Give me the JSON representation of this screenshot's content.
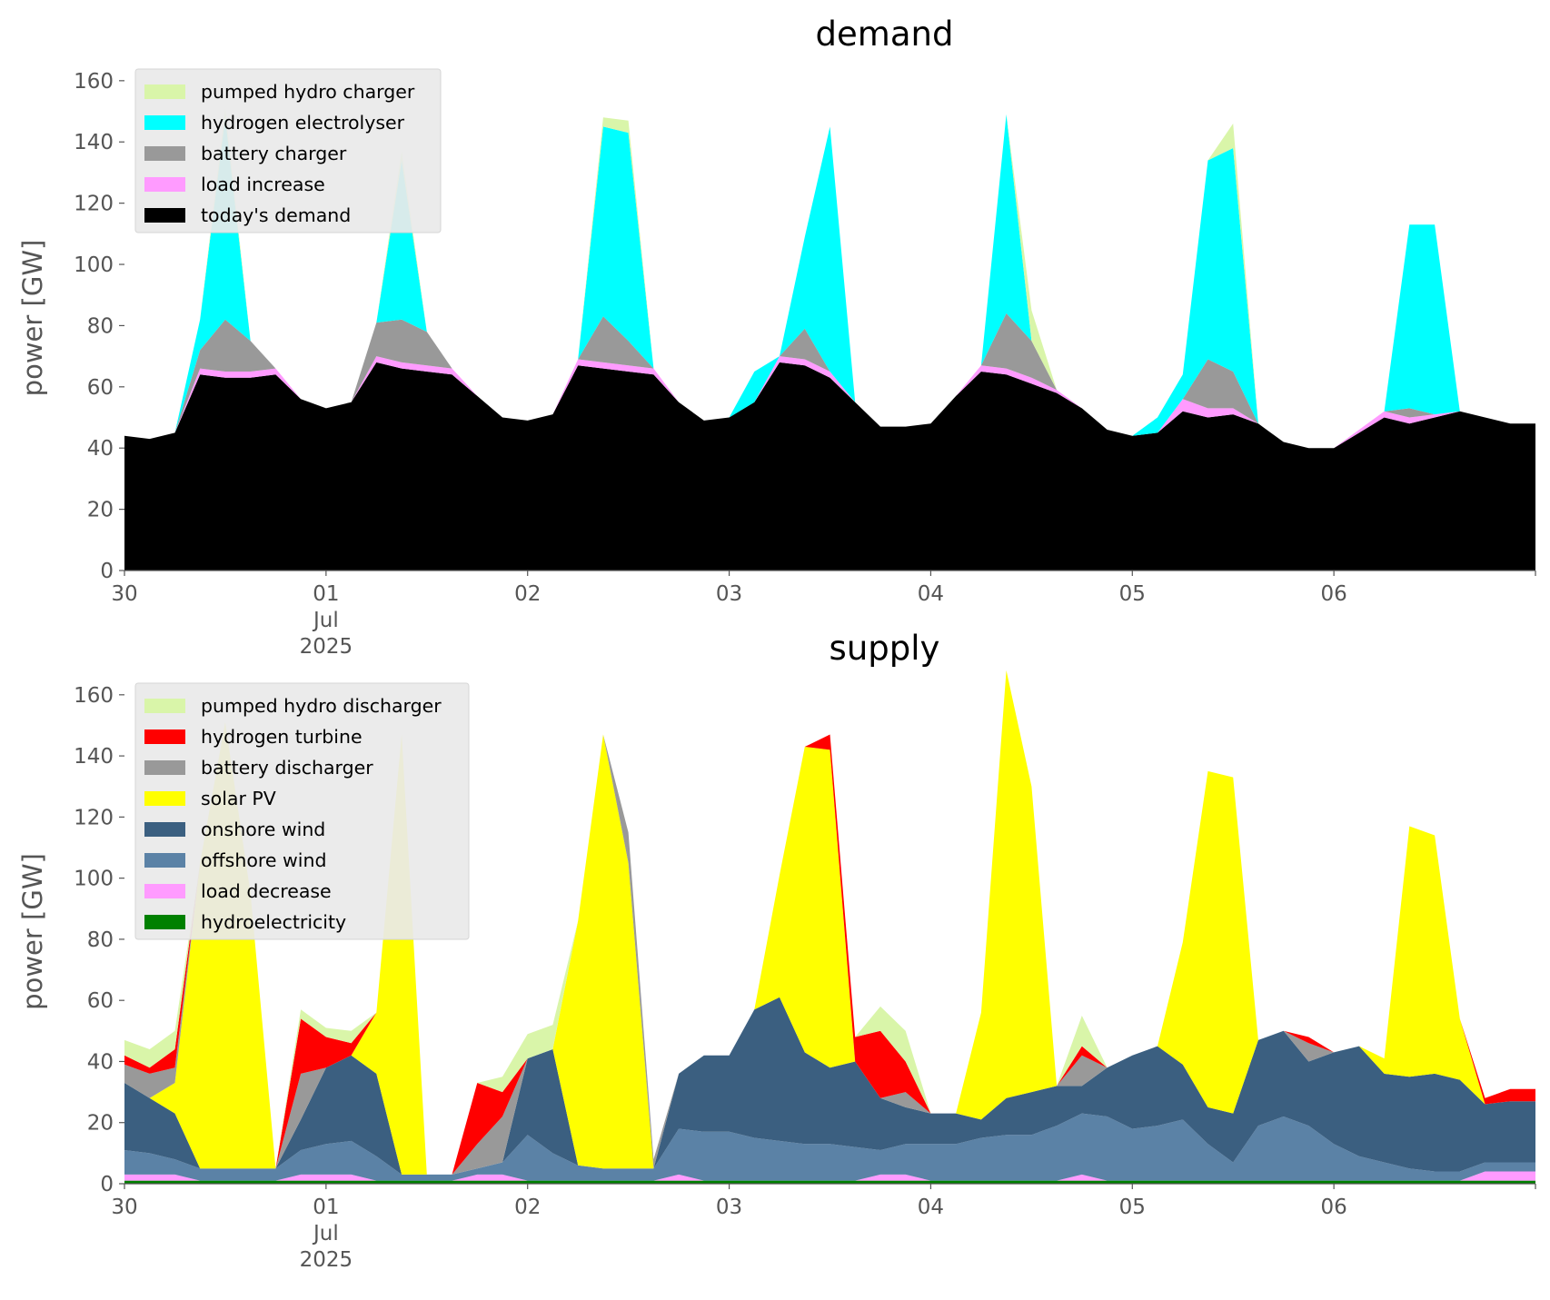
{
  "chart_data": [
    {
      "type": "area",
      "stacked": true,
      "title": "demand",
      "xlabel": "",
      "ylabel": "power [GW]",
      "ylim": [
        0,
        165
      ],
      "xlim": [
        "2025-06-30T00:00",
        "2025-07-07T00:00"
      ],
      "x_step_hours": 3,
      "x_ticks": [
        {
          "at": "2025-06-30T00:00",
          "lines": [
            "30",
            "",
            ""
          ]
        },
        {
          "at": "2025-07-01T00:00",
          "lines": [
            "01",
            "Jul",
            "2025"
          ]
        },
        {
          "at": "2025-07-02T00:00",
          "lines": [
            "02",
            "",
            ""
          ]
        },
        {
          "at": "2025-07-03T00:00",
          "lines": [
            "03",
            "",
            ""
          ]
        },
        {
          "at": "2025-07-04T00:00",
          "lines": [
            "04",
            "",
            ""
          ]
        },
        {
          "at": "2025-07-05T00:00",
          "lines": [
            "05",
            "",
            ""
          ]
        },
        {
          "at": "2025-07-06T00:00",
          "lines": [
            "06",
            "",
            ""
          ]
        }
      ],
      "y_ticks": [
        0,
        20,
        40,
        60,
        80,
        100,
        120,
        140,
        160
      ],
      "grid": false,
      "legend_position": "top-left",
      "series": [
        {
          "name": "today's demand",
          "color": "#000000",
          "values": [
            44,
            43,
            45,
            64,
            63,
            63,
            64,
            56,
            53,
            55,
            68,
            66,
            65,
            64,
            57,
            50,
            49,
            51,
            67,
            66,
            65,
            64,
            55,
            49,
            50,
            55,
            68,
            67,
            63,
            55,
            47,
            47,
            48,
            57,
            65,
            64,
            61,
            58,
            53,
            46,
            44,
            45,
            52,
            50,
            51,
            48,
            42,
            40,
            40,
            45,
            50,
            48,
            50,
            52,
            50,
            48
          ]
        },
        {
          "name": "load increase",
          "color": "#ff9bff",
          "values": [
            0,
            0,
            0,
            2,
            2,
            2,
            2,
            0,
            0,
            0,
            2,
            2,
            2,
            2,
            0,
            0,
            0,
            0,
            2,
            2,
            2,
            2,
            0,
            0,
            0,
            0,
            2,
            2,
            2,
            0,
            0,
            0,
            0,
            0,
            2,
            2,
            2,
            1,
            0,
            0,
            0,
            0,
            4,
            3,
            2,
            0,
            0,
            0,
            0,
            1,
            2,
            2,
            1,
            0,
            0,
            0
          ]
        },
        {
          "name": "battery charger",
          "color": "#999999",
          "values": [
            0,
            0,
            0,
            6,
            17,
            10,
            0,
            0,
            0,
            0,
            11,
            14,
            11,
            0,
            0,
            0,
            0,
            0,
            0,
            15,
            8,
            0,
            0,
            0,
            0,
            0,
            0,
            10,
            0,
            0,
            0,
            0,
            0,
            0,
            0,
            18,
            12,
            0,
            0,
            0,
            0,
            0,
            0,
            16,
            12,
            0,
            0,
            0,
            0,
            0,
            0,
            3,
            0,
            0,
            0,
            0
          ]
        },
        {
          "name": "hydrogen electrolyser",
          "color": "#00ffff",
          "values": [
            0,
            0,
            0,
            10,
            66,
            0,
            0,
            0,
            0,
            0,
            0,
            52,
            0,
            0,
            0,
            0,
            0,
            0,
            0,
            62,
            68,
            0,
            0,
            0,
            0,
            10,
            0,
            30,
            80,
            0,
            0,
            0,
            0,
            0,
            0,
            65,
            0,
            0,
            0,
            0,
            0,
            5,
            8,
            65,
            73,
            0,
            0,
            0,
            0,
            0,
            0,
            60,
            62,
            0,
            0,
            0
          ]
        },
        {
          "name": "pumped hydro charger",
          "color": "#d9f5a9",
          "values": [
            0,
            0,
            0,
            0,
            3,
            0,
            0,
            0,
            0,
            0,
            0,
            3,
            0,
            0,
            0,
            0,
            0,
            0,
            0,
            3,
            4,
            0,
            0,
            0,
            0,
            0,
            0,
            0,
            0,
            0,
            0,
            0,
            0,
            0,
            0,
            0,
            10,
            0,
            0,
            0,
            0,
            0,
            0,
            0,
            8,
            0,
            0,
            0,
            0,
            0,
            0,
            0,
            0,
            0,
            0,
            0
          ]
        }
      ]
    },
    {
      "type": "area",
      "stacked": true,
      "title": "supply",
      "xlabel": "",
      "ylabel": "power [GW]",
      "ylim": [
        0,
        165
      ],
      "xlim": [
        "2025-06-30T00:00",
        "2025-07-07T00:00"
      ],
      "x_step_hours": 3,
      "x_ticks": [
        {
          "at": "2025-06-30T00:00",
          "lines": [
            "30",
            "",
            ""
          ]
        },
        {
          "at": "2025-07-01T00:00",
          "lines": [
            "01",
            "Jul",
            "2025"
          ]
        },
        {
          "at": "2025-07-02T00:00",
          "lines": [
            "02",
            "",
            ""
          ]
        },
        {
          "at": "2025-07-03T00:00",
          "lines": [
            "03",
            "",
            ""
          ]
        },
        {
          "at": "2025-07-04T00:00",
          "lines": [
            "04",
            "",
            ""
          ]
        },
        {
          "at": "2025-07-05T00:00",
          "lines": [
            "05",
            "",
            ""
          ]
        },
        {
          "at": "2025-07-06T00:00",
          "lines": [
            "06",
            "",
            ""
          ]
        }
      ],
      "y_ticks": [
        0,
        20,
        40,
        60,
        80,
        100,
        120,
        140,
        160
      ],
      "grid": false,
      "legend_position": "top-left",
      "series": [
        {
          "name": "hydroelectricity",
          "color": "#008000",
          "values": [
            1,
            1,
            1,
            1,
            1,
            1,
            1,
            1,
            1,
            1,
            1,
            1,
            1,
            1,
            1,
            1,
            1,
            1,
            1,
            1,
            1,
            1,
            1,
            1,
            1,
            1,
            1,
            1,
            1,
            1,
            1,
            1,
            1,
            1,
            1,
            1,
            1,
            1,
            1,
            1,
            1,
            1,
            1,
            1,
            1,
            1,
            1,
            1,
            1,
            1,
            1,
            1,
            1,
            1,
            1,
            1
          ]
        },
        {
          "name": "load decrease",
          "color": "#ff9bff",
          "values": [
            2,
            2,
            2,
            0,
            0,
            0,
            0,
            2,
            2,
            2,
            0,
            0,
            0,
            0,
            2,
            2,
            0,
            0,
            0,
            0,
            0,
            0,
            2,
            0,
            0,
            0,
            0,
            0,
            0,
            0,
            2,
            2,
            0,
            0,
            0,
            0,
            0,
            0,
            2,
            0,
            0,
            0,
            0,
            0,
            0,
            0,
            0,
            0,
            0,
            0,
            0,
            0,
            0,
            0,
            3,
            3
          ]
        },
        {
          "name": "offshore wind",
          "color": "#5b82a6",
          "values": [
            8,
            7,
            5,
            4,
            4,
            4,
            4,
            8,
            10,
            11,
            8,
            2,
            2,
            2,
            2,
            4,
            15,
            9,
            5,
            4,
            4,
            4,
            15,
            16,
            16,
            14,
            13,
            12,
            12,
            11,
            8,
            10,
            12,
            12,
            14,
            15,
            15,
            18,
            20,
            21,
            17,
            18,
            20,
            12,
            6,
            18,
            21,
            18,
            12,
            8,
            6,
            4,
            3,
            3,
            3,
            3
          ]
        },
        {
          "name": "onshore wind",
          "color": "#3b5f80",
          "values": [
            22,
            18,
            15,
            0,
            0,
            0,
            0,
            10,
            25,
            28,
            27,
            0,
            0,
            0,
            0,
            0,
            25,
            34,
            0,
            0,
            0,
            0,
            18,
            25,
            25,
            42,
            47,
            30,
            25,
            28,
            17,
            12,
            10,
            10,
            6,
            12,
            14,
            13,
            9,
            16,
            24,
            26,
            18,
            12,
            16,
            28,
            28,
            21,
            30,
            36,
            29,
            30,
            32,
            30,
            19,
            20
          ]
        },
        {
          "name": "solar PV",
          "color": "#ffff00",
          "values": [
            0,
            0,
            10,
            100,
            146,
            90,
            0,
            0,
            0,
            0,
            20,
            144,
            0,
            0,
            0,
            0,
            0,
            0,
            80,
            142,
            100,
            0,
            0,
            0,
            0,
            0,
            40,
            100,
            104,
            0,
            0,
            0,
            0,
            0,
            35,
            140,
            100,
            0,
            0,
            0,
            0,
            0,
            40,
            110,
            110,
            0,
            0,
            0,
            0,
            0,
            5,
            82,
            78,
            20,
            0,
            0
          ]
        },
        {
          "name": "battery discharger",
          "color": "#999999",
          "values": [
            6,
            8,
            5,
            0,
            0,
            0,
            0,
            15,
            0,
            0,
            0,
            0,
            0,
            0,
            8,
            15,
            0,
            0,
            0,
            0,
            10,
            3,
            0,
            0,
            0,
            0,
            0,
            0,
            0,
            0,
            0,
            5,
            0,
            0,
            0,
            0,
            0,
            0,
            10,
            0,
            0,
            0,
            0,
            0,
            0,
            0,
            0,
            6,
            0,
            0,
            0,
            0,
            0,
            0,
            0,
            0
          ]
        },
        {
          "name": "hydrogen turbine",
          "color": "#ff0000",
          "values": [
            3,
            2,
            6,
            0,
            0,
            0,
            0,
            18,
            10,
            4,
            0,
            0,
            0,
            0,
            20,
            8,
            0,
            0,
            0,
            0,
            0,
            0,
            0,
            0,
            0,
            0,
            0,
            0,
            5,
            8,
            22,
            10,
            0,
            0,
            0,
            0,
            0,
            0,
            3,
            0,
            0,
            0,
            0,
            0,
            0,
            0,
            0,
            2,
            0,
            0,
            0,
            0,
            0,
            0,
            2,
            4
          ]
        },
        {
          "name": "pumped hydro discharger",
          "color": "#d9f5a9",
          "values": [
            5,
            6,
            6,
            0,
            0,
            0,
            0,
            3,
            3,
            4,
            0,
            0,
            0,
            0,
            0,
            5,
            8,
            8,
            0,
            0,
            0,
            0,
            0,
            0,
            0,
            0,
            0,
            0,
            0,
            0,
            8,
            10,
            0,
            0,
            0,
            0,
            0,
            0,
            10,
            0,
            0,
            0,
            0,
            0,
            0,
            0,
            0,
            0,
            0,
            0,
            0,
            0,
            0,
            0,
            0,
            0
          ]
        }
      ]
    }
  ]
}
